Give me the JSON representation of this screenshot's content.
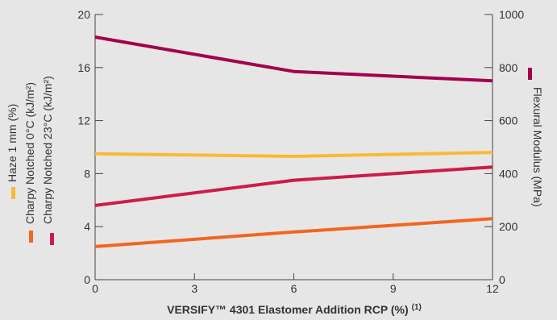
{
  "chart_data": {
    "type": "line",
    "x": [
      0,
      6,
      12
    ],
    "xticks": [
      "0",
      "3",
      "6",
      "9",
      "12"
    ],
    "xlim": [
      0,
      12
    ],
    "xlabel": "VERSIFY™ 4301 Elastomer Addition RCP (%)",
    "xlabel_sup": "(1)",
    "y_left": {
      "lim": [
        0,
        20
      ],
      "ticks": [
        "0",
        "4",
        "8",
        "12",
        "16",
        "20"
      ],
      "labels": [
        "Haze 1 mm (%)",
        "Charpy Notched 0°C (kJ/m²)",
        "Charpy Notched 23°C (kJ/m²)"
      ]
    },
    "y_right": {
      "lim": [
        0,
        1000
      ],
      "ticks": [
        "0",
        "200",
        "400",
        "600",
        "800",
        "1000"
      ],
      "label": "Flexural Modulus (MPa)"
    },
    "series": [
      {
        "name": "Haze 1 mm (%)",
        "axis": "left",
        "color": "#fbb834",
        "values": [
          9.5,
          9.3,
          9.6
        ]
      },
      {
        "name": "Charpy Notched 0°C (kJ/m²)",
        "axis": "left",
        "color": "#f26522",
        "values": [
          2.5,
          3.6,
          4.6
        ]
      },
      {
        "name": "Charpy Notched 23°C (kJ/m²)",
        "axis": "left",
        "color": "#cc1c4b",
        "values": [
          5.6,
          7.5,
          8.5
        ]
      },
      {
        "name": "Flexural Modulus (MPa)",
        "axis": "right",
        "color": "#a3004d",
        "values": [
          915,
          785,
          750
        ]
      }
    ],
    "grid": false
  }
}
